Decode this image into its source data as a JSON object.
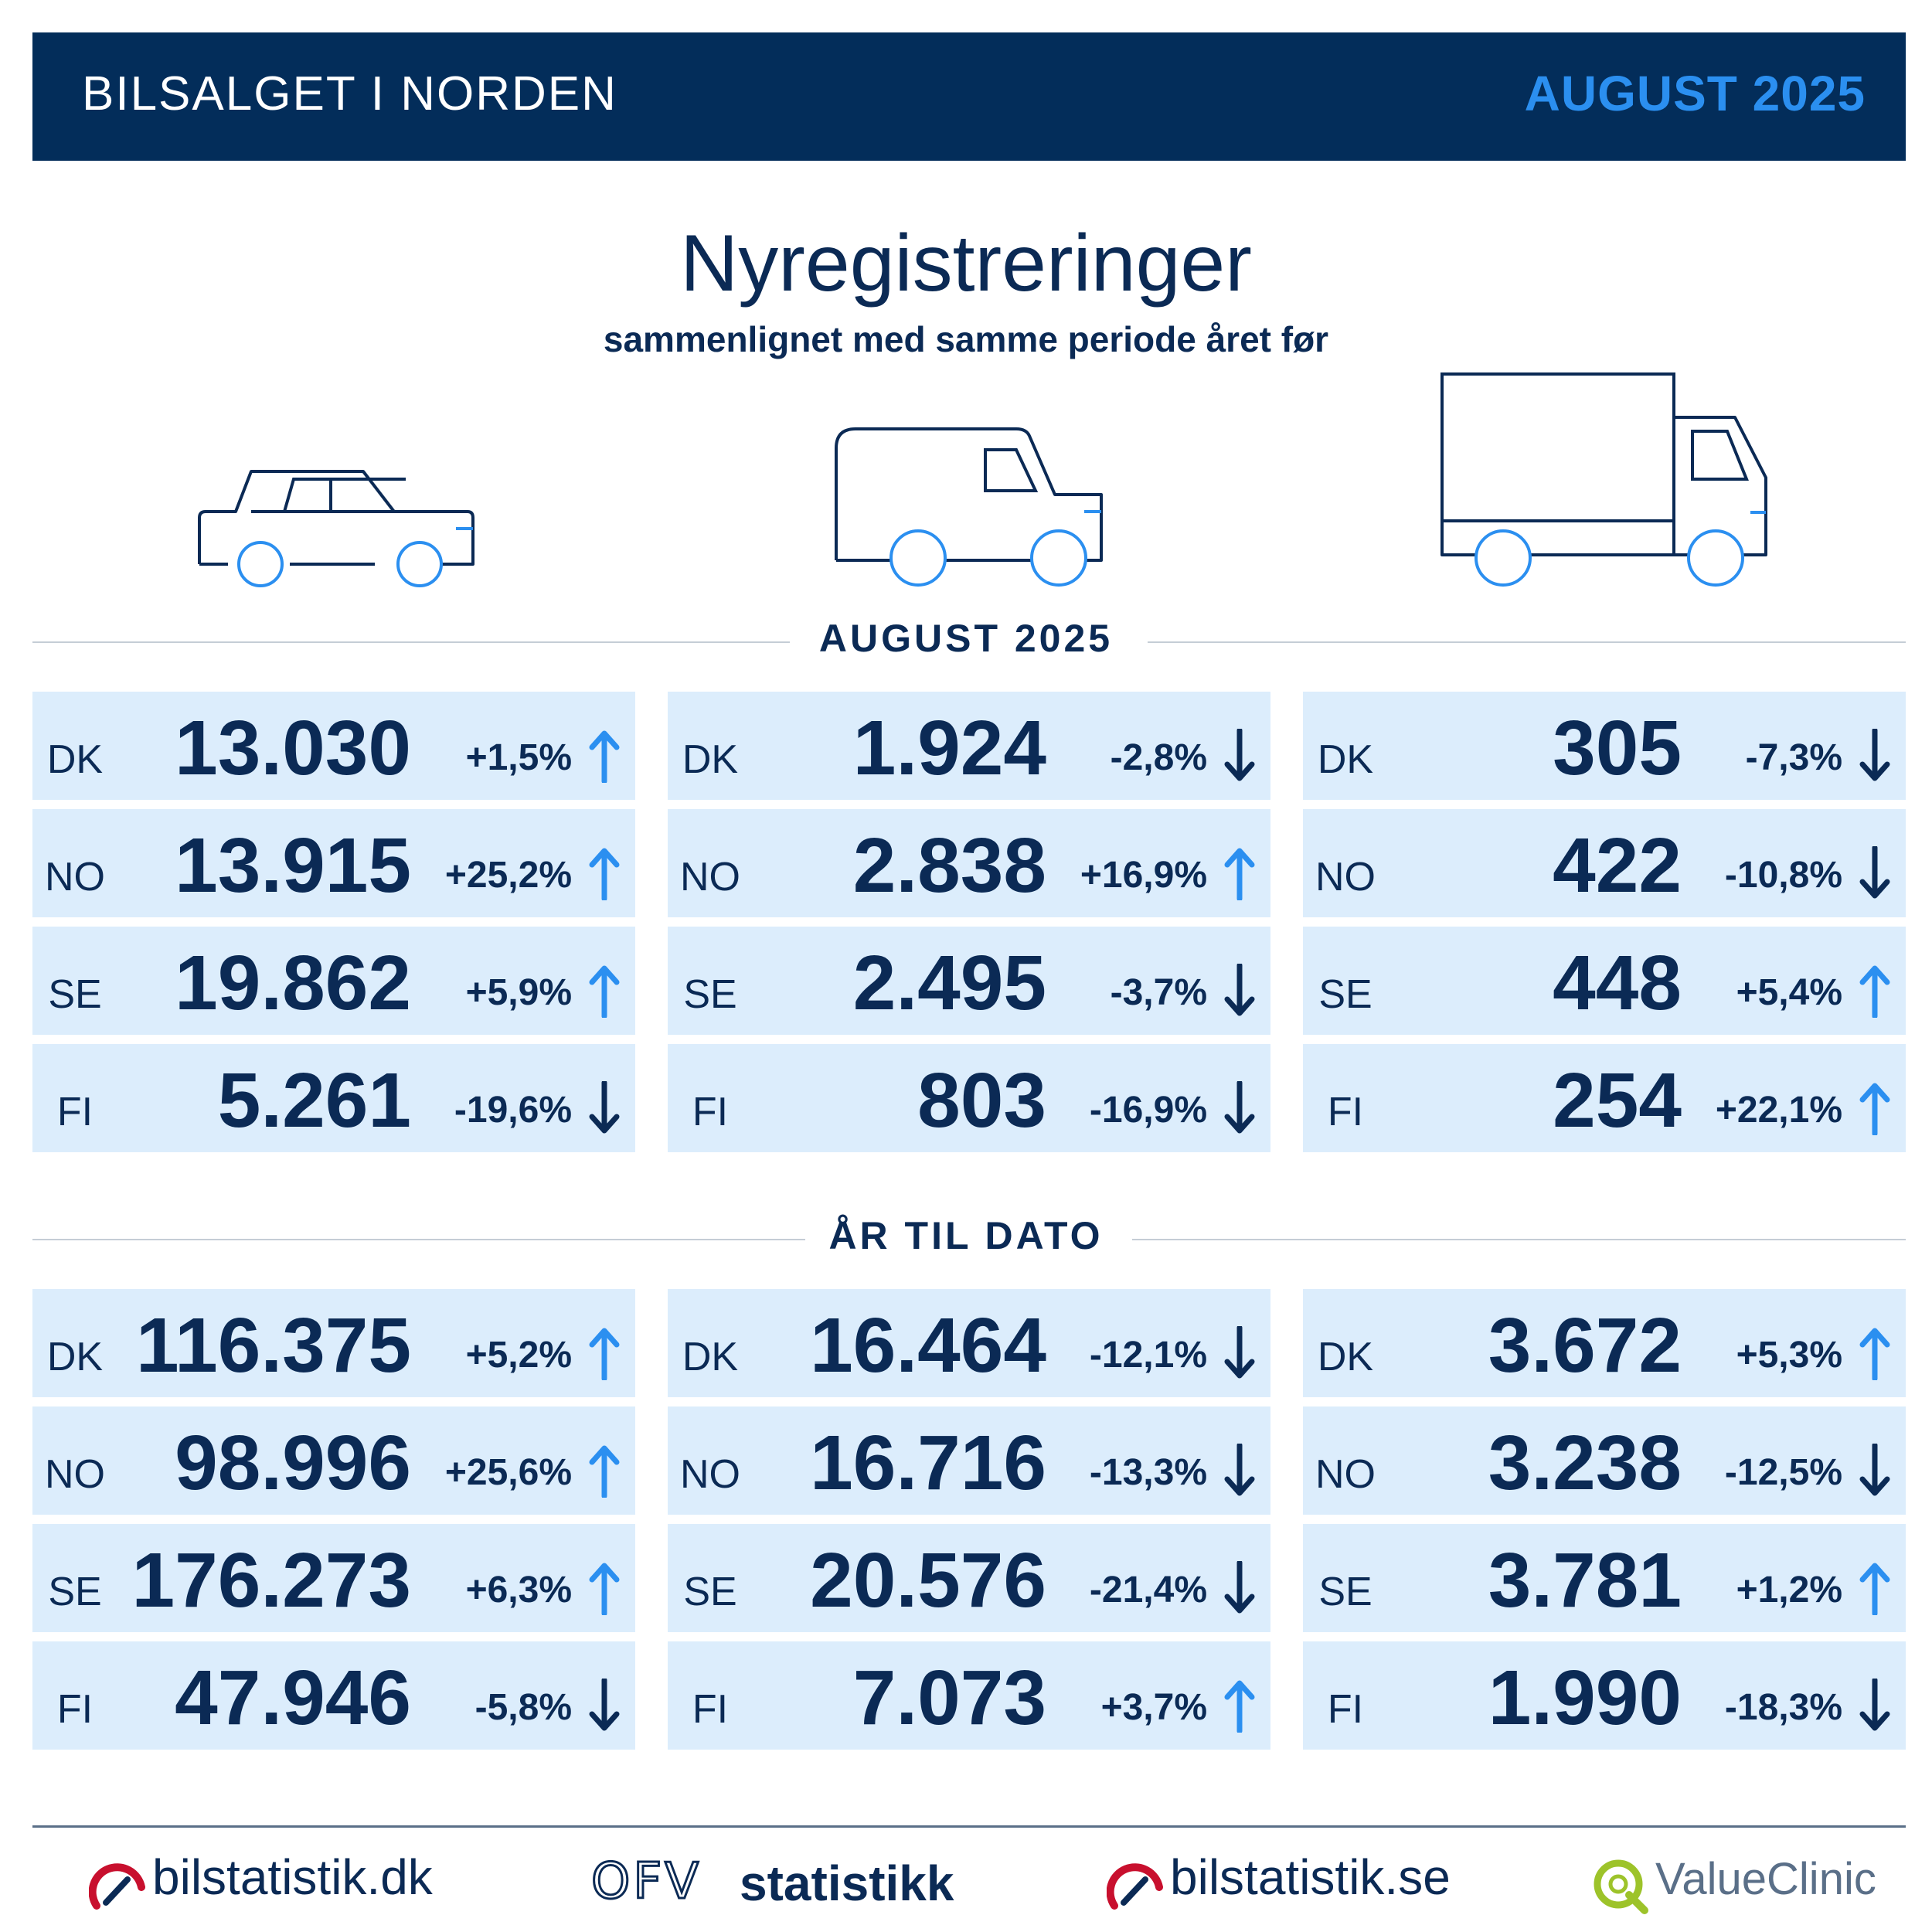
{
  "header": {
    "title": "BILSALGET I NORDEN",
    "date": "AUGUST 2025"
  },
  "main": {
    "title": "Nyregistreringer",
    "subtitle": "sammenlignet med samme periode året før"
  },
  "colors": {
    "navy": "#032d5a",
    "accent": "#2b8ff0",
    "card": "#dcedfc",
    "up": "#2b8ff0",
    "down": "#0b2a55"
  },
  "icons": [
    "car-icon",
    "van-icon",
    "truck-icon"
  ],
  "sections": [
    {
      "label": "AUGUST 2025",
      "columns": [
        [
          {
            "code": "DK",
            "value": "13.030",
            "pct": "+1,5%",
            "dir": "up"
          },
          {
            "code": "NO",
            "value": "13.915",
            "pct": "+25,2%",
            "dir": "up"
          },
          {
            "code": "SE",
            "value": "19.862",
            "pct": "+5,9%",
            "dir": "up"
          },
          {
            "code": "FI",
            "value": "5.261",
            "pct": "-19,6%",
            "dir": "down"
          }
        ],
        [
          {
            "code": "DK",
            "value": "1.924",
            "pct": "-2,8%",
            "dir": "down"
          },
          {
            "code": "NO",
            "value": "2.838",
            "pct": "+16,9%",
            "dir": "up"
          },
          {
            "code": "SE",
            "value": "2.495",
            "pct": "-3,7%",
            "dir": "down"
          },
          {
            "code": "FI",
            "value": "803",
            "pct": "-16,9%",
            "dir": "down"
          }
        ],
        [
          {
            "code": "DK",
            "value": "305",
            "pct": "-7,3%",
            "dir": "down"
          },
          {
            "code": "NO",
            "value": "422",
            "pct": "-10,8%",
            "dir": "down"
          },
          {
            "code": "SE",
            "value": "448",
            "pct": "+5,4%",
            "dir": "up"
          },
          {
            "code": "FI",
            "value": "254",
            "pct": "+22,1%",
            "dir": "up"
          }
        ]
      ]
    },
    {
      "label": "ÅR TIL DATO",
      "columns": [
        [
          {
            "code": "DK",
            "value": "116.375",
            "pct": "+5,2%",
            "dir": "up"
          },
          {
            "code": "NO",
            "value": "98.996",
            "pct": "+25,6%",
            "dir": "up"
          },
          {
            "code": "SE",
            "value": "176.273",
            "pct": "+6,3%",
            "dir": "up"
          },
          {
            "code": "FI",
            "value": "47.946",
            "pct": "-5,8%",
            "dir": "down"
          }
        ],
        [
          {
            "code": "DK",
            "value": "16.464",
            "pct": "-12,1%",
            "dir": "down"
          },
          {
            "code": "NO",
            "value": "16.716",
            "pct": "-13,3%",
            "dir": "down"
          },
          {
            "code": "SE",
            "value": "20.576",
            "pct": "-21,4%",
            "dir": "down"
          },
          {
            "code": "FI",
            "value": "7.073",
            "pct": "+3,7%",
            "dir": "up"
          }
        ],
        [
          {
            "code": "DK",
            "value": "3.672",
            "pct": "+5,3%",
            "dir": "up"
          },
          {
            "code": "NO",
            "value": "3.238",
            "pct": "-12,5%",
            "dir": "down"
          },
          {
            "code": "SE",
            "value": "3.781",
            "pct": "+1,2%",
            "dir": "up"
          },
          {
            "code": "FI",
            "value": "1.990",
            "pct": "-18,3%",
            "dir": "down"
          }
        ]
      ]
    }
  ],
  "footer": {
    "logos": [
      {
        "text": "bilstatistik.dk",
        "icon": "gauge-logo-icon"
      },
      {
        "text": "statistikk",
        "icon": "ofv-logo-icon",
        "mark": "OFV"
      },
      {
        "text": "bilstatistik.se",
        "icon": "gauge-logo-icon"
      },
      {
        "text": "ValueClinic",
        "icon": "valueclinic-logo-icon"
      }
    ]
  }
}
